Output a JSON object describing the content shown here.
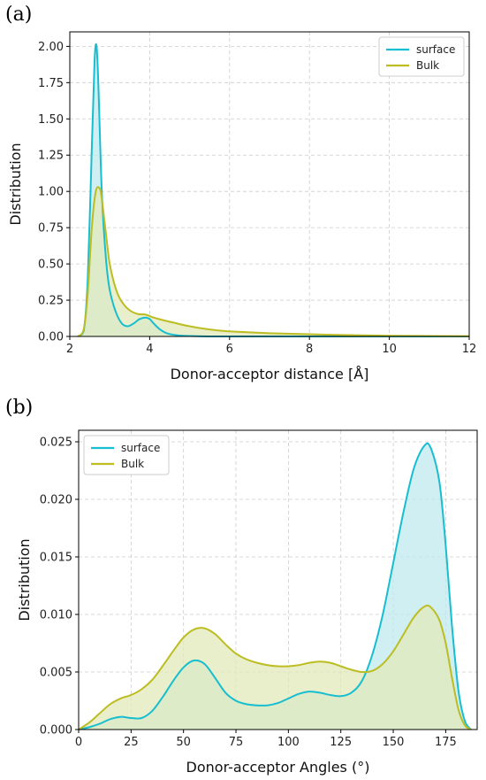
{
  "panels": {
    "a": {
      "label": "(a)"
    },
    "b": {
      "label": "(b)"
    }
  },
  "colors": {
    "surface": "#17becf",
    "surface_fill": "#bfe9ef",
    "bulk": "#bcbd22",
    "bulk_fill": "#e3eab9",
    "overlap_fill": "#a9d79d",
    "grid": "#cccccc"
  },
  "chart_data": [
    {
      "type": "area",
      "title": "",
      "xlabel": "Donor-acceptor distance [Å]",
      "ylabel": "Distribution",
      "xlim": [
        2,
        12
      ],
      "ylim": [
        0,
        2.1
      ],
      "xticks": [
        2,
        4,
        6,
        8,
        10,
        12
      ],
      "xtick_labels": [
        "2",
        "4",
        "6",
        "8",
        "10",
        "12"
      ],
      "yticks": [
        0,
        0.25,
        0.5,
        0.75,
        1.0,
        1.25,
        1.5,
        1.75,
        2.0
      ],
      "ytick_labels": [
        "0.00",
        "0.25",
        "0.50",
        "0.75",
        "1.00",
        "1.25",
        "1.50",
        "1.75",
        "2.00"
      ],
      "grid": true,
      "legend": "top-right",
      "series": [
        {
          "name": "surface",
          "x": [
            2.2,
            2.35,
            2.45,
            2.55,
            2.62,
            2.67,
            2.72,
            2.8,
            2.9,
            3.0,
            3.15,
            3.3,
            3.45,
            3.6,
            3.75,
            3.9,
            4.0,
            4.1,
            4.25,
            4.45,
            4.7,
            5.0,
            5.5,
            6.0,
            7.0,
            8.0,
            10.0,
            12.0
          ],
          "y": [
            0.0,
            0.04,
            0.4,
            1.3,
            1.9,
            2.0,
            1.7,
            1.0,
            0.55,
            0.32,
            0.17,
            0.09,
            0.07,
            0.09,
            0.12,
            0.13,
            0.12,
            0.09,
            0.05,
            0.02,
            0.008,
            0.003,
            0.0,
            0.0,
            0.0,
            0.0,
            0.0,
            0.0
          ]
        },
        {
          "name": "Bulk",
          "x": [
            2.2,
            2.35,
            2.45,
            2.55,
            2.65,
            2.75,
            2.8,
            2.9,
            3.0,
            3.15,
            3.3,
            3.5,
            3.7,
            3.9,
            4.1,
            4.3,
            4.6,
            5.0,
            5.5,
            6.0,
            6.5,
            7.0,
            8.0,
            9.0,
            10.0,
            11.0,
            12.0
          ],
          "y": [
            0.0,
            0.05,
            0.3,
            0.75,
            1.0,
            1.02,
            0.95,
            0.72,
            0.5,
            0.33,
            0.24,
            0.18,
            0.155,
            0.15,
            0.13,
            0.115,
            0.095,
            0.07,
            0.048,
            0.035,
            0.028,
            0.022,
            0.015,
            0.009,
            0.005,
            0.003,
            0.001
          ]
        }
      ]
    },
    {
      "type": "area",
      "title": "",
      "xlabel": "Donor-acceptor Angles (°)",
      "ylabel": "Distribution",
      "xlim": [
        0,
        190
      ],
      "ylim": [
        0,
        0.026
      ],
      "xticks": [
        0,
        25,
        50,
        75,
        100,
        125,
        150,
        175
      ],
      "xtick_labels": [
        "0",
        "25",
        "50",
        "75",
        "100",
        "125",
        "150",
        "175"
      ],
      "yticks": [
        0,
        0.005,
        0.01,
        0.015,
        0.02,
        0.025
      ],
      "ytick_labels": [
        "0.000",
        "0.005",
        "0.010",
        "0.015",
        "0.020",
        "0.025"
      ],
      "grid": true,
      "legend": "top-left",
      "series": [
        {
          "name": "surface",
          "x": [
            0,
            5,
            10,
            15,
            20,
            25,
            30,
            35,
            40,
            45,
            50,
            55,
            60,
            65,
            70,
            75,
            80,
            85,
            90,
            95,
            100,
            105,
            110,
            115,
            120,
            125,
            130,
            135,
            140,
            145,
            150,
            155,
            160,
            165,
            168,
            172,
            175,
            178,
            181,
            184,
            187
          ],
          "y": [
            0.0,
            0.0002,
            0.0005,
            0.0009,
            0.0011,
            0.001,
            0.001,
            0.0016,
            0.0028,
            0.0042,
            0.0054,
            0.006,
            0.0057,
            0.0045,
            0.0032,
            0.0025,
            0.0022,
            0.0021,
            0.0021,
            0.0023,
            0.0027,
            0.0031,
            0.0033,
            0.0032,
            0.003,
            0.0029,
            0.0032,
            0.0042,
            0.0065,
            0.01,
            0.0145,
            0.019,
            0.0228,
            0.0247,
            0.0244,
            0.0215,
            0.016,
            0.009,
            0.0035,
            0.0008,
            0.0
          ]
        },
        {
          "name": "Bulk",
          "x": [
            0,
            5,
            10,
            15,
            20,
            25,
            30,
            35,
            40,
            45,
            50,
            55,
            60,
            65,
            70,
            75,
            80,
            85,
            90,
            95,
            100,
            105,
            110,
            115,
            120,
            125,
            130,
            135,
            140,
            145,
            150,
            155,
            160,
            165,
            168,
            172,
            175,
            178,
            181,
            184,
            187
          ],
          "y": [
            0.0,
            0.0006,
            0.0014,
            0.0022,
            0.0027,
            0.003,
            0.0035,
            0.0043,
            0.0055,
            0.0068,
            0.008,
            0.0087,
            0.0088,
            0.0083,
            0.0074,
            0.0066,
            0.0061,
            0.0058,
            0.0056,
            0.0055,
            0.0055,
            0.0056,
            0.0058,
            0.0059,
            0.0058,
            0.0055,
            0.0052,
            0.005,
            0.0051,
            0.0057,
            0.0068,
            0.0083,
            0.0098,
            0.0107,
            0.0106,
            0.0095,
            0.0075,
            0.0045,
            0.0018,
            0.0004,
            0.0
          ]
        }
      ]
    }
  ]
}
